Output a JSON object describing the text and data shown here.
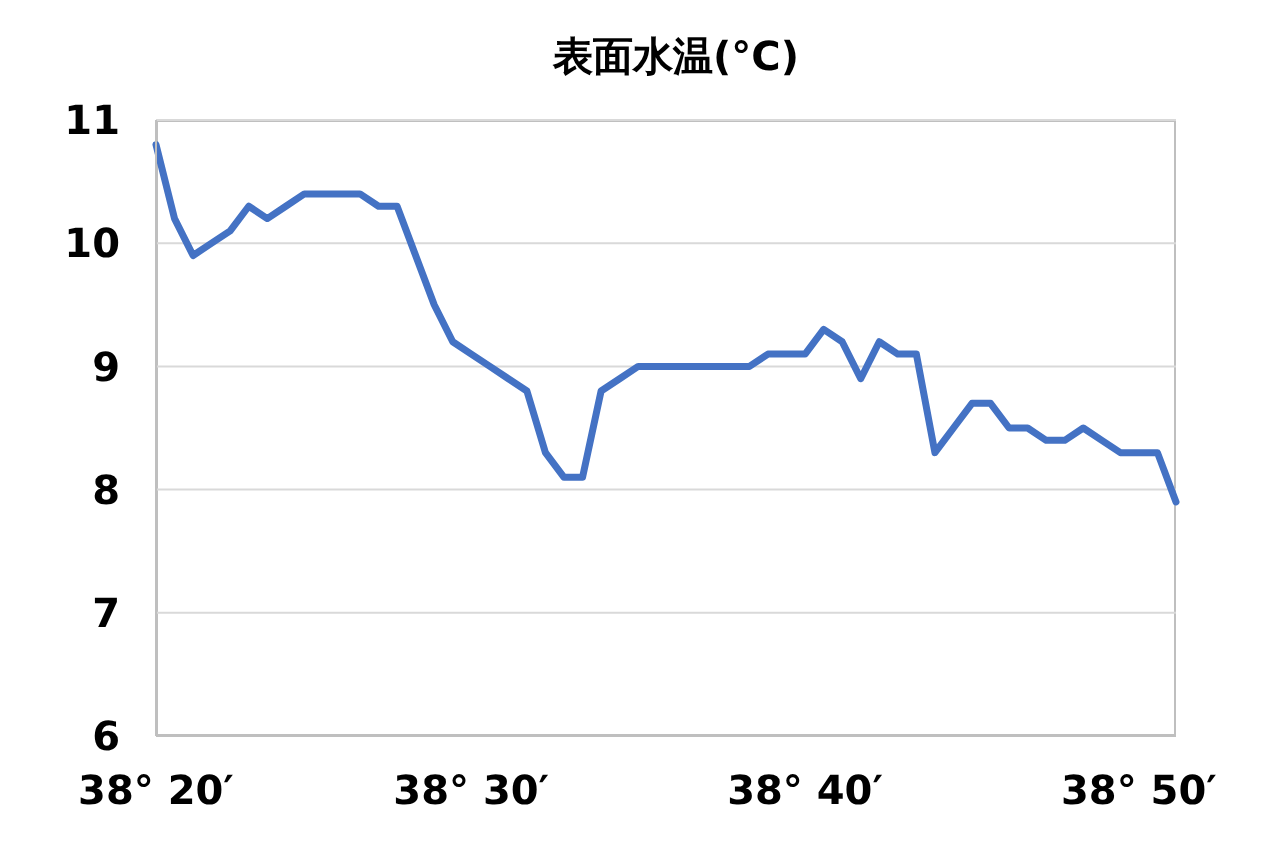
{
  "chart_data": {
    "type": "line",
    "title": "表面水温(°C)",
    "categories": [
      "38° 20′",
      null,
      null,
      null,
      null,
      null,
      null,
      null,
      null,
      null,
      null,
      null,
      null,
      null,
      null,
      null,
      null,
      "38° 30′",
      null,
      null,
      null,
      null,
      null,
      null,
      null,
      null,
      null,
      null,
      null,
      null,
      null,
      null,
      null,
      null,
      null,
      "38° 40′",
      null,
      null,
      null,
      null,
      null,
      null,
      null,
      null,
      null,
      null,
      null,
      null,
      null,
      null,
      null,
      null,
      null,
      "38° 50′",
      null,
      null
    ],
    "series": [
      {
        "color": "#4472c4",
        "values": [
          10.8,
          10.2,
          9.9,
          10.0,
          10.1,
          10.3,
          10.2,
          10.3,
          10.4,
          10.4,
          10.4,
          10.4,
          10.3,
          10.3,
          9.9,
          9.5,
          9.2,
          9.1,
          9.0,
          8.9,
          8.8,
          8.3,
          8.1,
          8.1,
          8.8,
          8.9,
          9.0,
          9.0,
          9.0,
          9.0,
          9.0,
          9.0,
          9.0,
          9.1,
          9.1,
          9.1,
          9.3,
          9.2,
          8.9,
          9.2,
          9.1,
          9.1,
          8.3,
          8.5,
          8.7,
          8.7,
          8.5,
          8.5,
          8.4,
          8.4,
          8.5,
          8.4,
          8.3,
          8.3,
          8.3,
          7.9
        ]
      }
    ],
    "ylim": [
      6,
      11
    ],
    "yticks": [
      6,
      7,
      8,
      9,
      10,
      11
    ],
    "grid": "y",
    "marker": "none",
    "line_style": "solid",
    "legend": false
  }
}
